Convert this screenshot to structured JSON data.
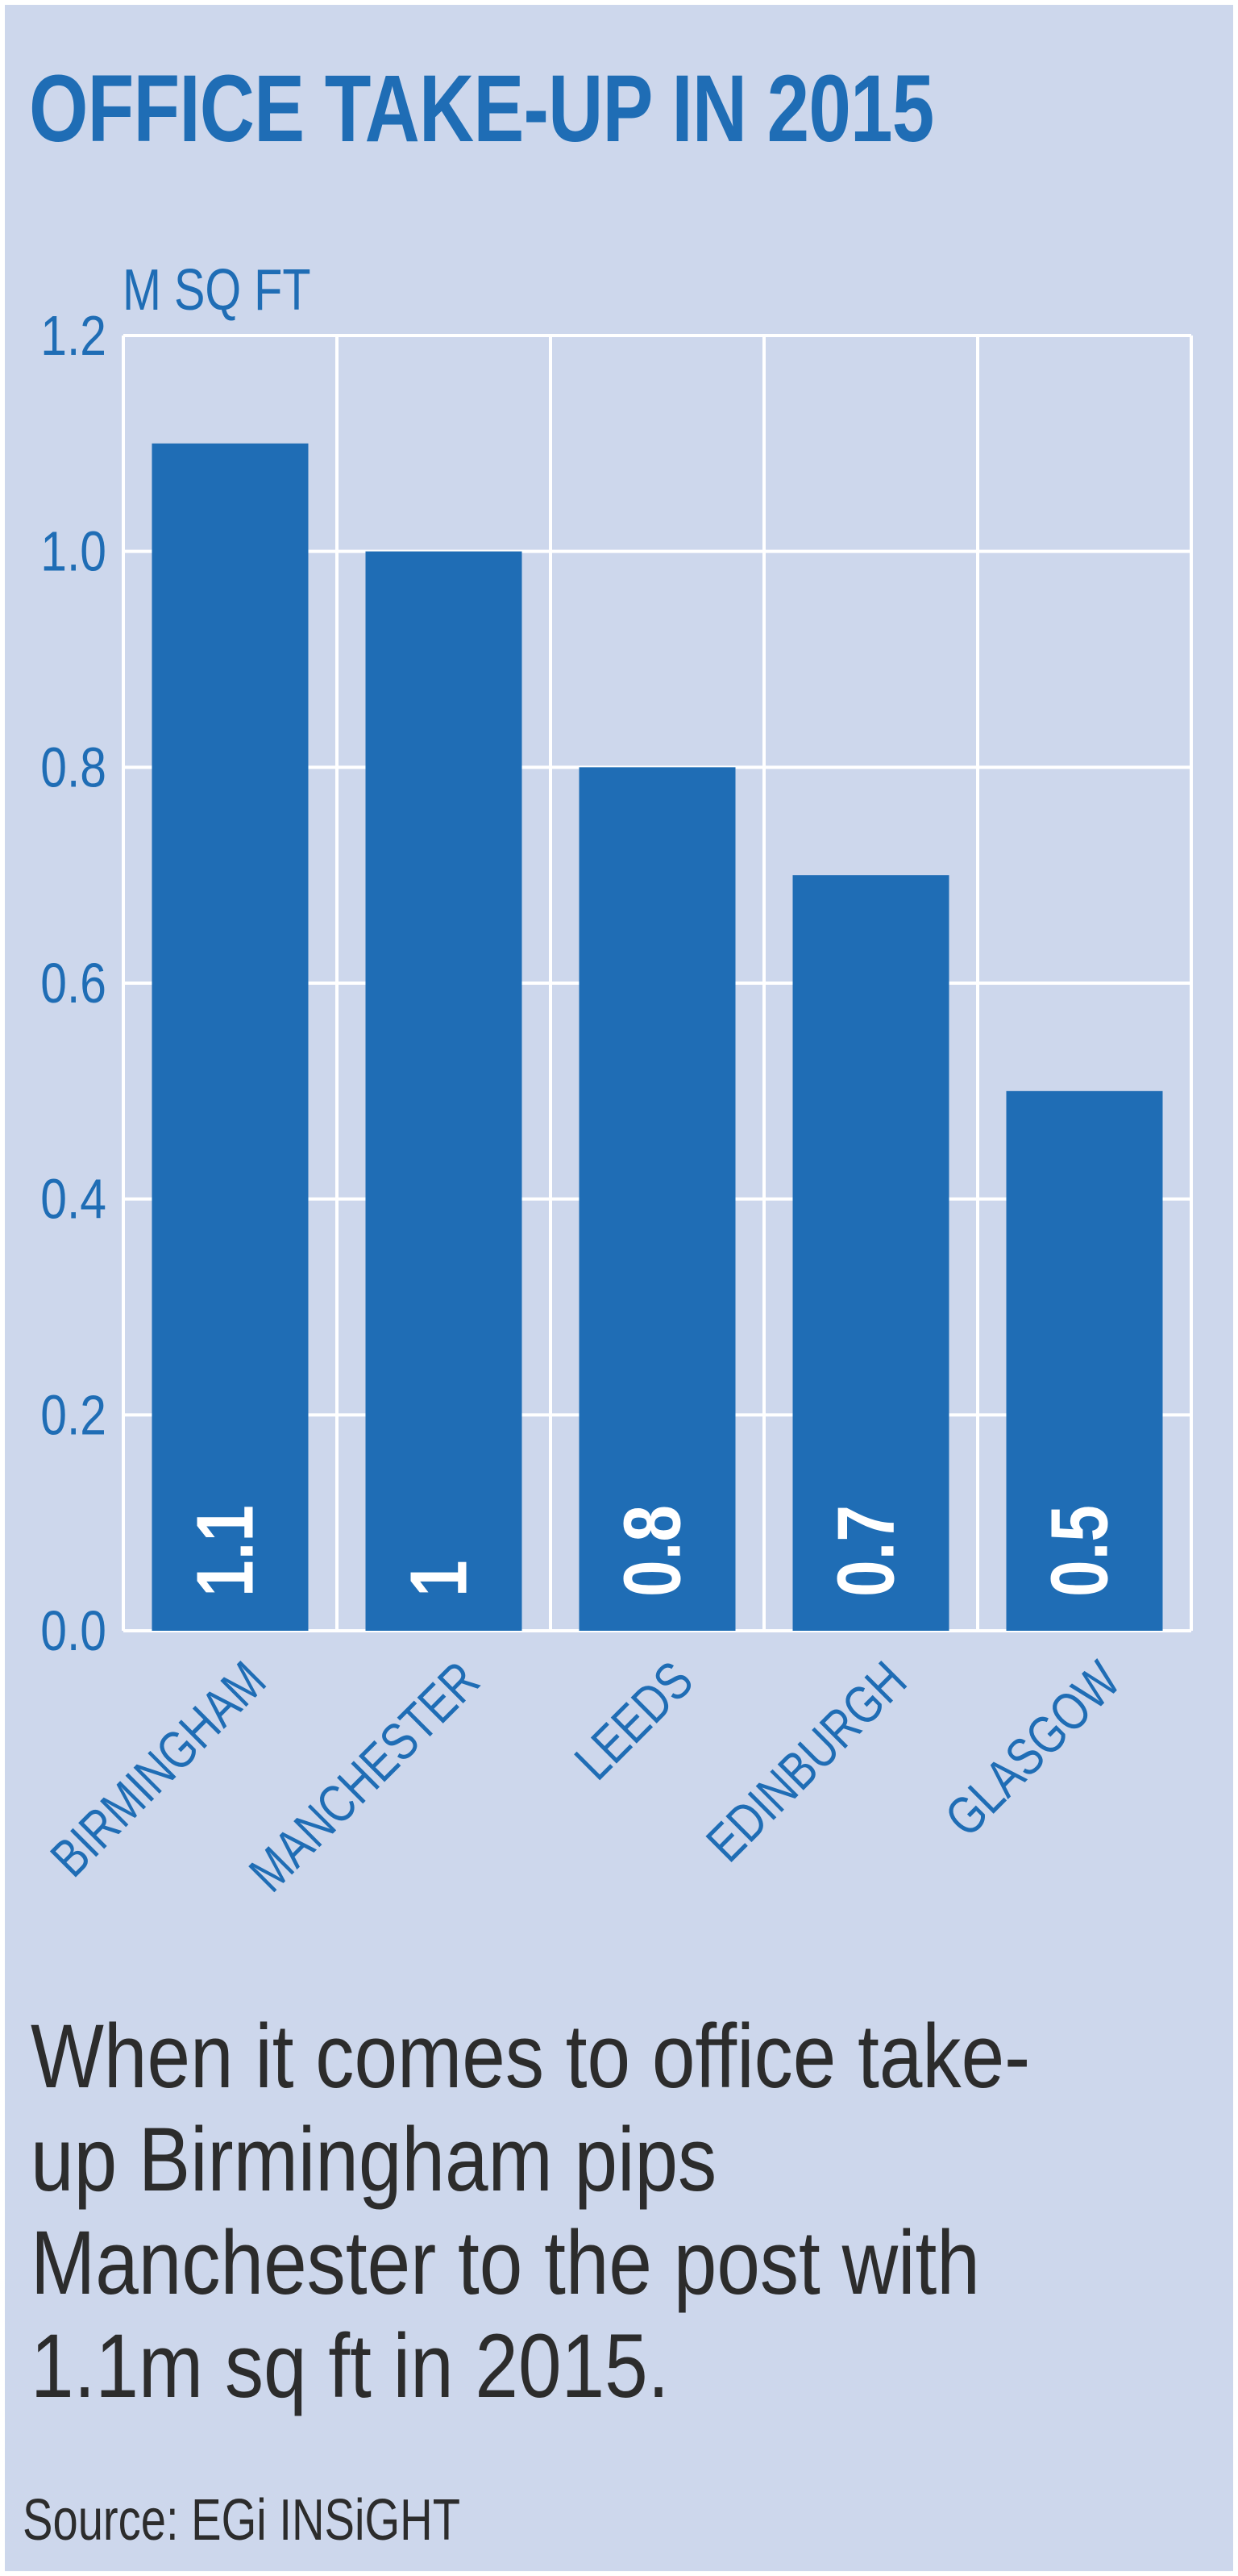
{
  "chart_data": {
    "type": "bar",
    "title": "OFFICE TAKE-UP IN 2015",
    "ylabel": "M SQ FT",
    "xlabel": "",
    "categories": [
      "BIRMINGHAM",
      "MANCHESTER",
      "LEEDS",
      "EDINBURGH",
      "GLASGOW"
    ],
    "values": [
      1.1,
      1,
      0.8,
      0.7,
      0.5
    ],
    "value_labels": [
      "1.1",
      "1",
      "0.8",
      "0.7",
      "0.5"
    ],
    "ylim": [
      0,
      1.2
    ],
    "yticks": [
      "0.0",
      "0.2",
      "0.4",
      "0.6",
      "0.8",
      "1.0",
      "1.2"
    ],
    "grid": true,
    "colors": {
      "bar": "#1f6db5",
      "axis_text": "#1f6db5",
      "grid": "#ffffff"
    }
  },
  "caption": "When it comes to office take-up Birmingham pips Manchester to the post with 1.1m sq ft in 2015.",
  "source": "Source: EGi INSiGHT",
  "colors": {
    "background": "#cdd7ec",
    "title": "#1f6db5",
    "text": "#2c2c2c"
  }
}
